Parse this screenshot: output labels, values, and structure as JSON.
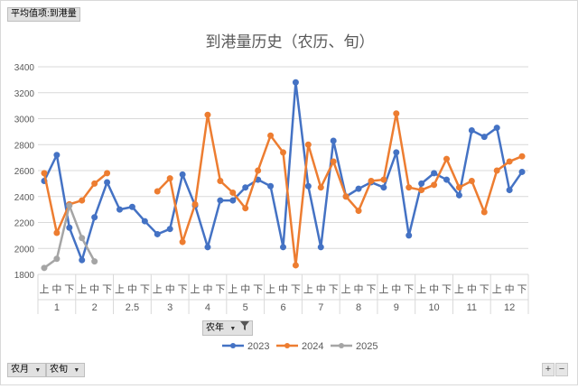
{
  "measure_button": "平均值项:到港量",
  "filters": {
    "month_field": "农月",
    "period_field": "农旬",
    "year_field": "农年"
  },
  "zoom": {
    "plus": "+",
    "minus": "−"
  },
  "icons": {
    "dropdown": "triangle-down",
    "filter": "funnel"
  },
  "chart_data": {
    "type": "line",
    "title": "到港量历史（农历、旬）",
    "ylim": [
      1800,
      3400
    ],
    "yticks": [
      1800,
      2000,
      2200,
      2400,
      2600,
      2800,
      3000,
      3200,
      3400
    ],
    "grid": true,
    "legend_position": "bottom",
    "groups": [
      "1",
      "2",
      "2.5",
      "3",
      "4",
      "5",
      "6",
      "7",
      "8",
      "9",
      "10",
      "11",
      "12"
    ],
    "sub_labels": [
      "上",
      "中",
      "下"
    ],
    "series": [
      {
        "name": "2023",
        "color": "#4472c4",
        "values": [
          2520,
          2720,
          2160,
          1910,
          2240,
          2510,
          2300,
          2320,
          2210,
          2110,
          2150,
          2570,
          2330,
          2010,
          2370,
          2370,
          2470,
          2530,
          2480,
          2010,
          3280,
          2480,
          2010,
          2830,
          2400,
          2460,
          2510,
          2470,
          2740,
          2100,
          2500,
          2580,
          2530,
          2410,
          2910,
          2860,
          2930,
          2450,
          2590
        ]
      },
      {
        "name": "2024",
        "color": "#ed7d31",
        "values": [
          2580,
          2120,
          2340,
          2370,
          2500,
          2580,
          null,
          null,
          null,
          2440,
          2540,
          2050,
          2340,
          3030,
          2520,
          2430,
          2310,
          2600,
          2870,
          2740,
          1870,
          2800,
          2470,
          2670,
          2400,
          2290,
          2520,
          2530,
          3040,
          2470,
          2450,
          2490,
          2690,
          2470,
          2520,
          2280,
          2600,
          2670,
          2710
        ]
      },
      {
        "name": "2025",
        "color": "#a5a5a5",
        "values": [
          1850,
          1920,
          2330,
          2080,
          1900,
          null,
          null,
          null,
          null,
          null,
          null,
          null,
          null,
          null,
          null,
          null,
          null,
          null,
          null,
          null,
          null,
          null,
          null,
          null,
          null,
          null,
          null,
          null,
          null,
          null,
          null,
          null,
          null,
          null,
          null,
          null,
          null,
          null,
          null
        ]
      }
    ]
  }
}
